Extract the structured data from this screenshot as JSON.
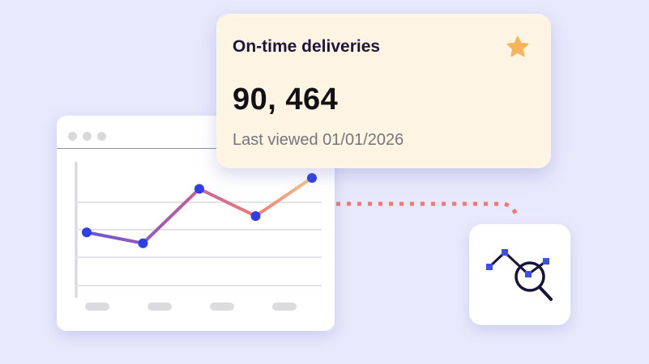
{
  "card": {
    "title": "On-time deliveries",
    "value": "90, 464",
    "subtitle": "Last viewed 01/01/2026",
    "icon": "star-icon",
    "accent": "#f8b45a",
    "background": "#fdf4e3"
  },
  "chart_data": {
    "type": "line",
    "x": [
      1,
      2,
      3,
      4,
      5
    ],
    "values": [
      2.4,
      2.0,
      4.0,
      3.0,
      4.4
    ],
    "ylim": [
      0,
      5.5
    ],
    "grid": true,
    "point_color": "#2f3fe6",
    "gradient": [
      "#6a56d6",
      "#c05a9c",
      "#ee7c75",
      "#f3c986"
    ],
    "xticks": [
      "",
      "",
      "",
      ""
    ]
  },
  "window": {
    "controls": [
      "dot",
      "dot",
      "dot"
    ]
  },
  "insight_tile": {
    "icon": "chart-analysis-icon"
  },
  "colors": {
    "background": "#e8e9fc",
    "connector": "#f07a70",
    "icon_stroke": "#16143a",
    "icon_accent": "#3b4fe8"
  }
}
